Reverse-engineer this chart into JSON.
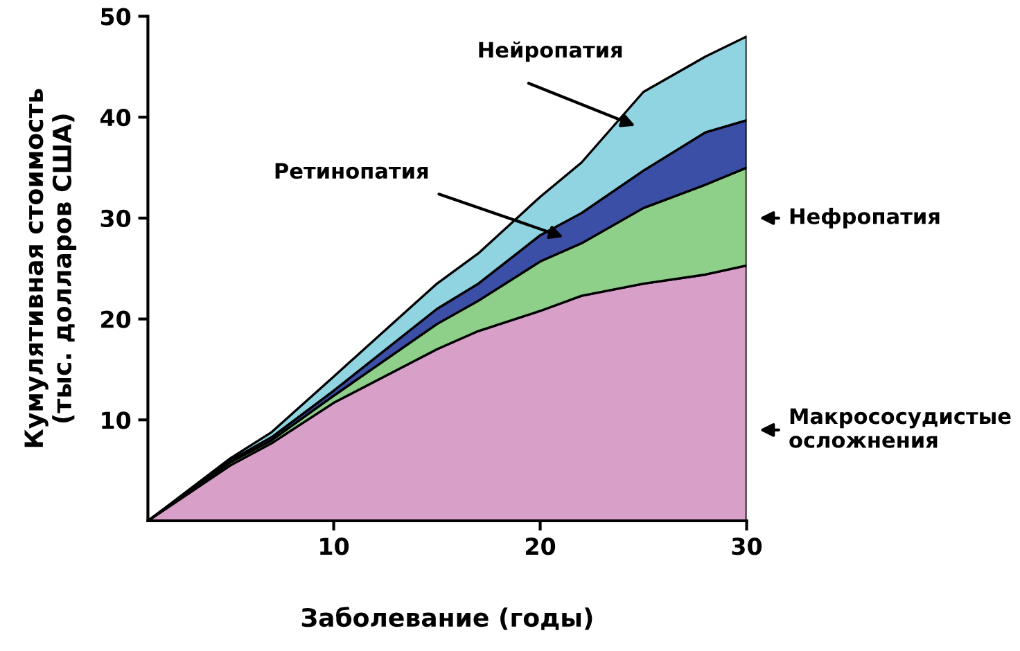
{
  "chart_data": {
    "type": "area",
    "stacked": true,
    "xlabel": "Заболевание (годы)",
    "ylabel": "Кумулятивная стоимость\n(тыс. долларов США)",
    "x": [
      1,
      5,
      7,
      10,
      15,
      17,
      20,
      22,
      25,
      28,
      30
    ],
    "series": [
      {
        "color": "#d8a0c9",
        "values": [
          0,
          5.5,
          7.7,
          11.7,
          17.0,
          18.8,
          20.8,
          22.3,
          23.5,
          24.4,
          25.3
        ]
      },
      {
        "color": "#8ecf8a",
        "values": [
          0,
          0.3,
          0.3,
          0.7,
          2.5,
          3.0,
          4.9,
          5.2,
          7.5,
          8.9,
          9.7
        ]
      },
      {
        "color": "#3b4fa6",
        "values": [
          0,
          0.2,
          0.3,
          0.5,
          1.5,
          1.7,
          2.6,
          3.0,
          3.7,
          5.2,
          4.7
        ]
      },
      {
        "color": "#8fd4e0",
        "values": [
          0,
          0.2,
          0.5,
          1.4,
          2.5,
          3.0,
          3.8,
          5.0,
          7.8,
          7.5,
          8.3
        ]
      }
    ],
    "annotations": [
      "Нейропатия",
      "Ретинопатия",
      "Нефропатия",
      "Макрососудистые\nосложнения"
    ],
    "xlim": [
      1,
      30
    ],
    "ylim": [
      0,
      50
    ],
    "xticks": [
      10,
      20,
      30
    ],
    "yticks": [
      10,
      20,
      30,
      40,
      50
    ],
    "grid": false,
    "legend": false
  }
}
